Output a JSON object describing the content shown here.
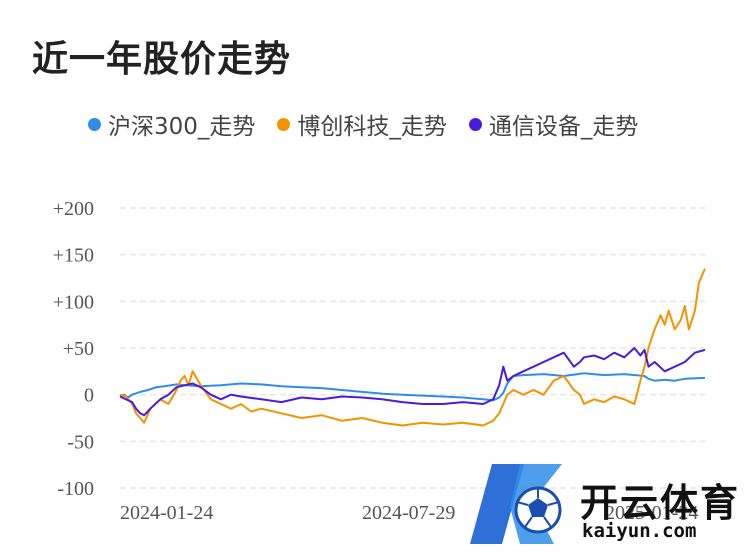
{
  "page": {
    "title": "近一年股价走势"
  },
  "watermark": {
    "name": "开云体育",
    "domain": "kaiyun.com"
  },
  "chart_data": {
    "type": "line",
    "title": "",
    "xlabel": "",
    "ylabel": "",
    "y_ticks": [
      "+200",
      "+150",
      "+100",
      "+50",
      "0",
      "-50",
      "-100"
    ],
    "y_tick_values": [
      200,
      150,
      100,
      50,
      0,
      -50,
      -100
    ],
    "ylim": [
      -100,
      200
    ],
    "x_ticks": [
      "2024-01-24",
      "2024-07-29",
      "2025-01-24"
    ],
    "grid": true,
    "legend_position": "top",
    "series": [
      {
        "name": "沪深300_走势",
        "color": "#2e8de8",
        "x": [
          0,
          2,
          4,
          6,
          10,
          14,
          18,
          22,
          28,
          32,
          40,
          50,
          60,
          70,
          80,
          90,
          100,
          110,
          120,
          130,
          140,
          150,
          160,
          170,
          180,
          185,
          188,
          190,
          192,
          195,
          200,
          210,
          220,
          230,
          240,
          250,
          260,
          262,
          265,
          270,
          275,
          280,
          290
        ],
        "y": [
          -2,
          0,
          -3,
          0,
          3,
          5,
          8,
          9,
          11,
          10,
          9,
          10,
          12,
          11,
          9,
          8,
          7,
          5,
          3,
          1,
          0,
          -1,
          -2,
          -3,
          -5,
          -6,
          -3,
          2,
          12,
          20,
          21,
          22,
          20,
          23,
          21,
          22,
          20,
          17,
          15,
          16,
          15,
          17,
          18
        ]
      },
      {
        "name": "博创科技_走势",
        "color": "#f39300",
        "x": [
          0,
          3,
          6,
          8,
          10,
          12,
          15,
          20,
          24,
          28,
          30,
          32,
          34,
          36,
          40,
          45,
          50,
          55,
          60,
          65,
          70,
          80,
          90,
          100,
          110,
          120,
          130,
          140,
          150,
          160,
          170,
          180,
          185,
          188,
          190,
          192,
          195,
          200,
          205,
          210,
          215,
          220,
          225,
          228,
          230,
          235,
          240,
          245,
          250,
          255,
          258,
          260,
          262,
          265,
          268,
          270,
          272,
          275,
          278,
          280,
          282,
          285,
          287,
          290
        ],
        "y": [
          0,
          -2,
          -10,
          -20,
          -25,
          -30,
          -15,
          -5,
          -10,
          5,
          15,
          20,
          10,
          25,
          10,
          -5,
          -10,
          -15,
          -10,
          -18,
          -15,
          -20,
          -25,
          -22,
          -28,
          -25,
          -30,
          -33,
          -30,
          -32,
          -30,
          -33,
          -28,
          -20,
          -10,
          0,
          5,
          0,
          5,
          0,
          15,
          20,
          5,
          0,
          -10,
          -5,
          -8,
          -2,
          -5,
          -10,
          15,
          30,
          50,
          70,
          85,
          75,
          90,
          70,
          80,
          95,
          70,
          90,
          120,
          135
        ]
      },
      {
        "name": "通信设备_走势",
        "color": "#4a1bdc",
        "x": [
          0,
          3,
          6,
          8,
          10,
          12,
          15,
          20,
          24,
          28,
          32,
          36,
          40,
          45,
          50,
          55,
          60,
          70,
          80,
          90,
          100,
          110,
          120,
          130,
          140,
          150,
          160,
          170,
          180,
          185,
          188,
          190,
          192,
          195,
          200,
          205,
          210,
          215,
          220,
          225,
          228,
          230,
          235,
          240,
          245,
          250,
          255,
          258,
          260,
          262,
          265,
          270,
          275,
          280,
          285,
          290
        ],
        "y": [
          -2,
          -5,
          -8,
          -15,
          -20,
          -22,
          -15,
          -5,
          0,
          8,
          10,
          12,
          8,
          0,
          -5,
          0,
          -2,
          -5,
          -8,
          -3,
          -5,
          -2,
          -3,
          -5,
          -8,
          -10,
          -10,
          -8,
          -10,
          -5,
          10,
          30,
          15,
          20,
          25,
          30,
          35,
          40,
          45,
          30,
          35,
          40,
          42,
          38,
          45,
          40,
          50,
          42,
          48,
          30,
          35,
          25,
          30,
          35,
          45,
          48
        ]
      }
    ]
  }
}
